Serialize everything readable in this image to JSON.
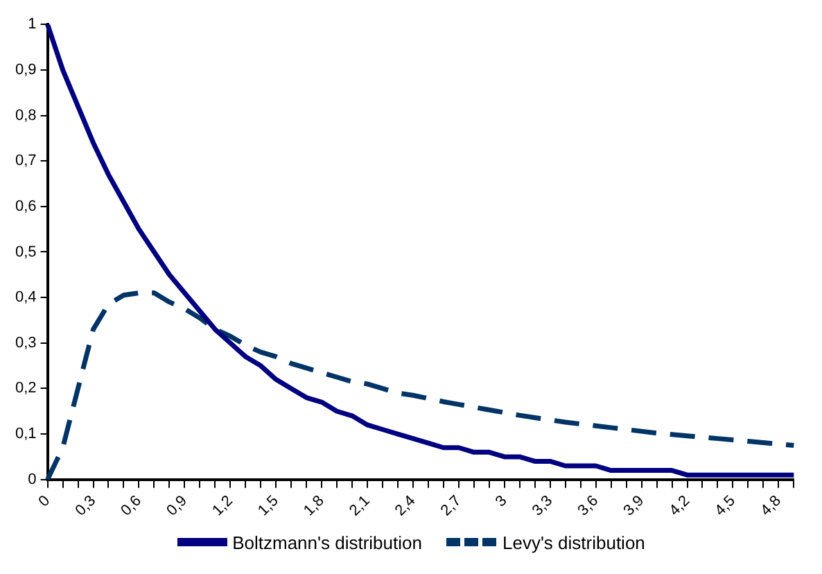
{
  "chart_data": {
    "type": "line",
    "categories": [
      "0",
      null,
      null,
      "0,3",
      null,
      null,
      "0,6",
      null,
      null,
      "0,9",
      null,
      null,
      "1,2",
      null,
      null,
      "1,5",
      null,
      null,
      "1,8",
      null,
      null,
      "2,1",
      null,
      null,
      "2,4",
      null,
      null,
      "2,7",
      null,
      null,
      "3",
      null,
      null,
      "3,3",
      null,
      null,
      "3,6",
      null,
      null,
      "3,9",
      null,
      null,
      "4,2",
      null,
      null,
      "4,5",
      null,
      null,
      "4,8",
      null
    ],
    "series": [
      {
        "name": "Boltzmann's distribution",
        "color": "#000080",
        "line_style": "solid",
        "values": [
          1,
          0.9,
          0.82,
          0.74,
          0.67,
          0.61,
          0.55,
          0.5,
          0.45,
          0.41,
          0.37,
          0.33,
          0.3,
          0.27,
          0.25,
          0.22,
          0.2,
          0.18,
          0.17,
          0.15,
          0.14,
          0.12,
          0.11,
          0.1,
          0.09,
          0.08,
          0.07,
          0.07,
          0.06,
          0.06,
          0.05,
          0.05,
          0.04,
          0.04,
          0.03,
          0.03,
          0.03,
          0.02,
          0.02,
          0.02,
          0.02,
          0.02,
          0.01,
          0.01,
          0.01,
          0.01,
          0.01,
          0.01,
          0.01,
          0.01
        ]
      },
      {
        "name": "Levy's distribution",
        "color": "#003366",
        "line_style": "dashed",
        "values": [
          0,
          0.07,
          0.2,
          0.33,
          0.385,
          0.405,
          0.41,
          0.41,
          0.39,
          0.375,
          0.355,
          0.33,
          0.315,
          0.295,
          0.28,
          0.27,
          0.255,
          0.245,
          0.235,
          0.225,
          0.215,
          0.21,
          0.2,
          0.19,
          0.185,
          0.178,
          0.171,
          0.165,
          0.159,
          0.153,
          0.147,
          0.141,
          0.136,
          0.131,
          0.126,
          0.122,
          0.118,
          0.114,
          0.11,
          0.106,
          0.102,
          0.099,
          0.096,
          0.093,
          0.09,
          0.087,
          0.084,
          0.081,
          0.078,
          0.075
        ]
      }
    ],
    "ylim": [
      0,
      1
    ],
    "yticks": [
      0,
      {
        "value": 0.1,
        "label": "0,1"
      },
      {
        "value": 0.2,
        "label": "0,2"
      },
      {
        "value": 0.3,
        "label": "0,3"
      },
      {
        "value": 0.4,
        "label": "0,4"
      },
      {
        "value": 0.5,
        "label": "0,5"
      },
      {
        "value": 0.6,
        "label": "0,6"
      },
      {
        "value": 0.7,
        "label": "0,7"
      },
      {
        "value": 0.8,
        "label": "0,8"
      },
      {
        "value": 0.9,
        "label": "0,9"
      },
      1
    ],
    "grid": false,
    "legend": "bottom",
    "marker": "none"
  }
}
